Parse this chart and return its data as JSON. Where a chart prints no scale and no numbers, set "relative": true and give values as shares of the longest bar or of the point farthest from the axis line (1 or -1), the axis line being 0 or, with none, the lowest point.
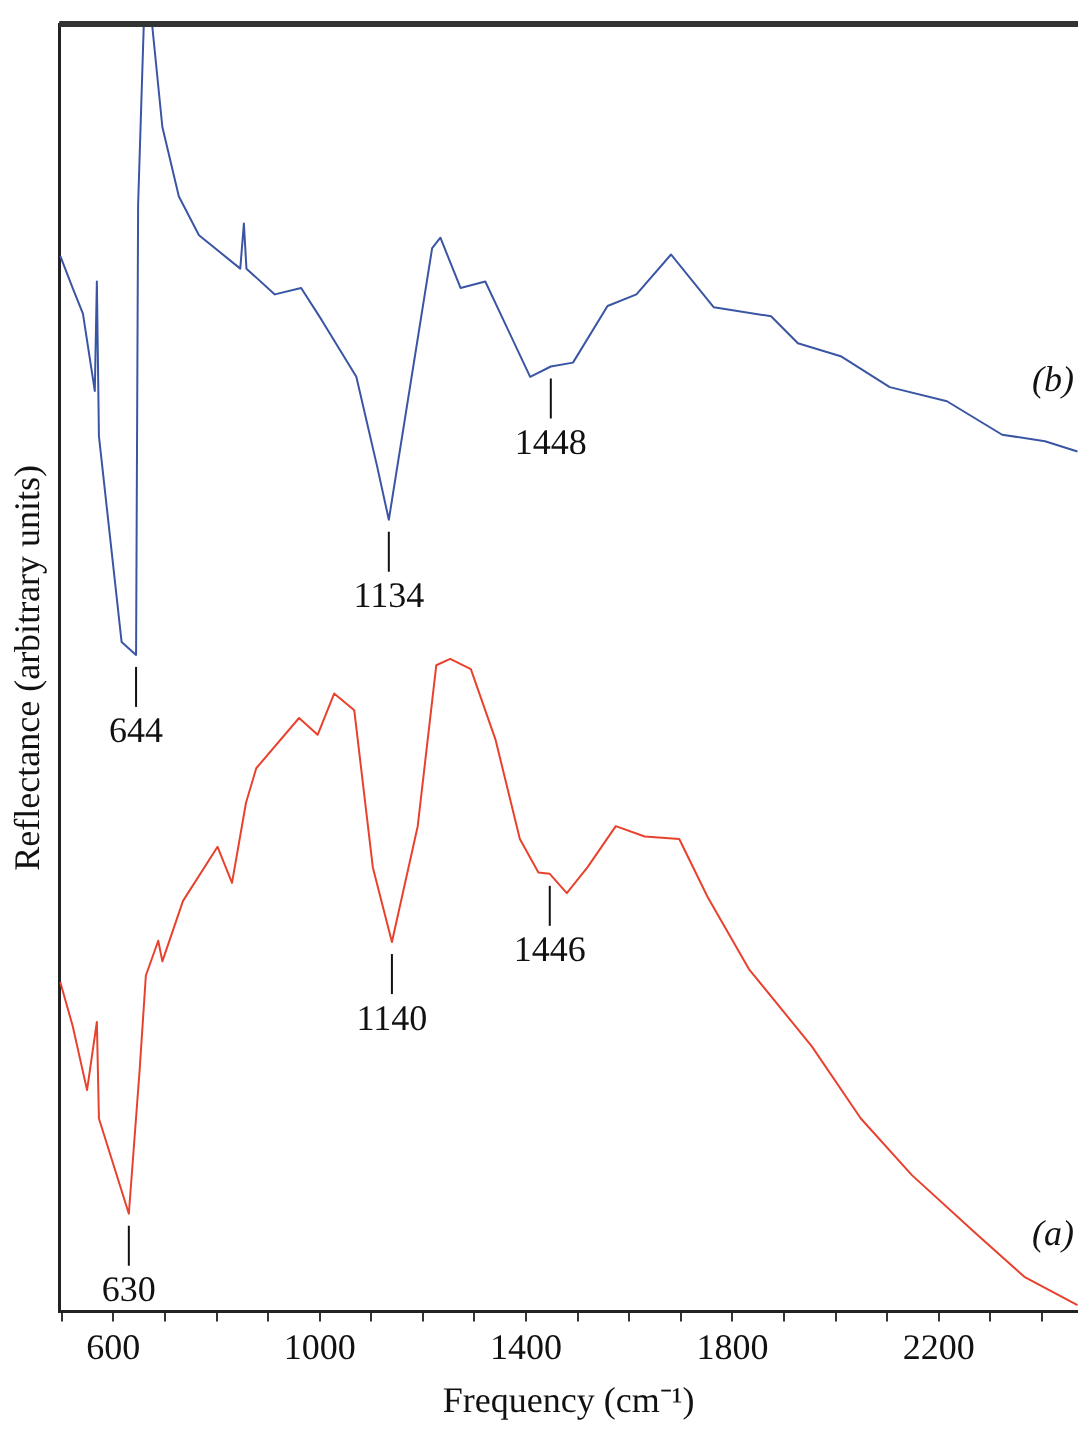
{
  "chart_data": {
    "type": "line",
    "relative": true,
    "xlabel": "Frequency (cm⁻¹)",
    "ylabel": "Reflectance (arbitrary units)",
    "xlim": [
      495,
      2470
    ],
    "xticks": [
      {
        "value": 500,
        "label": null
      },
      600,
      {
        "value": 700,
        "label": null
      },
      {
        "value": 800,
        "label": null
      },
      {
        "value": 900,
        "label": null
      },
      1000,
      {
        "value": 1100,
        "label": null
      },
      {
        "value": 1200,
        "label": null
      },
      {
        "value": 1300,
        "label": null
      },
      1400,
      {
        "value": 1500,
        "label": null
      },
      {
        "value": 1600,
        "label": null
      },
      {
        "value": 1700,
        "label": null
      },
      1800,
      {
        "value": 1900,
        "label": null
      },
      {
        "value": 2000,
        "label": null
      },
      {
        "value": 2100,
        "label": null
      },
      2200,
      {
        "value": 2300,
        "label": null
      },
      {
        "value": 2400,
        "label": null
      }
    ],
    "grid": false,
    "legend": false,
    "marker": "none",
    "line_style": "solid",
    "series": [
      {
        "name": "(b)",
        "color": "#3a55a4",
        "x": [
          497,
          521,
          541,
          564,
          568,
          572,
          616,
          644,
          648,
          659,
          675,
          695,
          727,
          766,
          846,
          853,
          858,
          913,
          964,
          1004,
          1071,
          1111,
          1134,
          1218,
          1234,
          1273,
          1321,
          1408,
          1448,
          1491,
          1558,
          1614,
          1681,
          1764,
          1875,
          1927,
          2010,
          2105,
          2216,
          2323,
          2406,
          2469
        ],
        "values": [
          0.82,
          0.795,
          0.775,
          0.715,
          0.8,
          0.68,
          0.52,
          0.51,
          0.86,
          1.0,
          1.0,
          0.92,
          0.866,
          0.836,
          0.81,
          0.845,
          0.81,
          0.79,
          0.795,
          0.77,
          0.726,
          0.657,
          0.615,
          0.826,
          0.834,
          0.795,
          0.8,
          0.726,
          0.734,
          0.737,
          0.781,
          0.79,
          0.821,
          0.78,
          0.773,
          0.752,
          0.742,
          0.718,
          0.707,
          0.681,
          0.676,
          0.668
        ]
      },
      {
        "name": "(a)",
        "color": "#e8422e",
        "x": [
          497,
          521,
          549,
          568,
          572,
          630,
          651,
          663,
          687,
          695,
          735,
          802,
          830,
          857,
          877,
          960,
          996,
          1028,
          1067,
          1103,
          1140,
          1190,
          1226,
          1253,
          1293,
          1341,
          1388,
          1424,
          1446,
          1479,
          1519,
          1574,
          1630,
          1697,
          1752,
          1832,
          1954,
          2049,
          2148,
          2271,
          2366,
          2469
        ],
        "values": [
          0.256,
          0.222,
          0.172,
          0.225,
          0.15,
          0.076,
          0.188,
          0.261,
          0.288,
          0.272,
          0.319,
          0.361,
          0.333,
          0.395,
          0.422,
          0.461,
          0.448,
          0.48,
          0.467,
          0.345,
          0.287,
          0.377,
          0.502,
          0.507,
          0.499,
          0.444,
          0.367,
          0.341,
          0.34,
          0.325,
          0.345,
          0.377,
          0.369,
          0.367,
          0.322,
          0.266,
          0.206,
          0.15,
          0.106,
          0.061,
          0.027,
          0.005
        ]
      }
    ],
    "annotations": [
      {
        "text": "644",
        "x": 644,
        "y": 0.51
      },
      {
        "text": "1134",
        "x": 1134,
        "y": 0.615
      },
      {
        "text": "1448",
        "x": 1448,
        "y": 0.734
      },
      {
        "text": "630",
        "x": 630,
        "y": 0.076
      },
      {
        "text": "1140",
        "x": 1140,
        "y": 0.287
      },
      {
        "text": "1446",
        "x": 1446,
        "y": 0.34
      }
    ]
  }
}
